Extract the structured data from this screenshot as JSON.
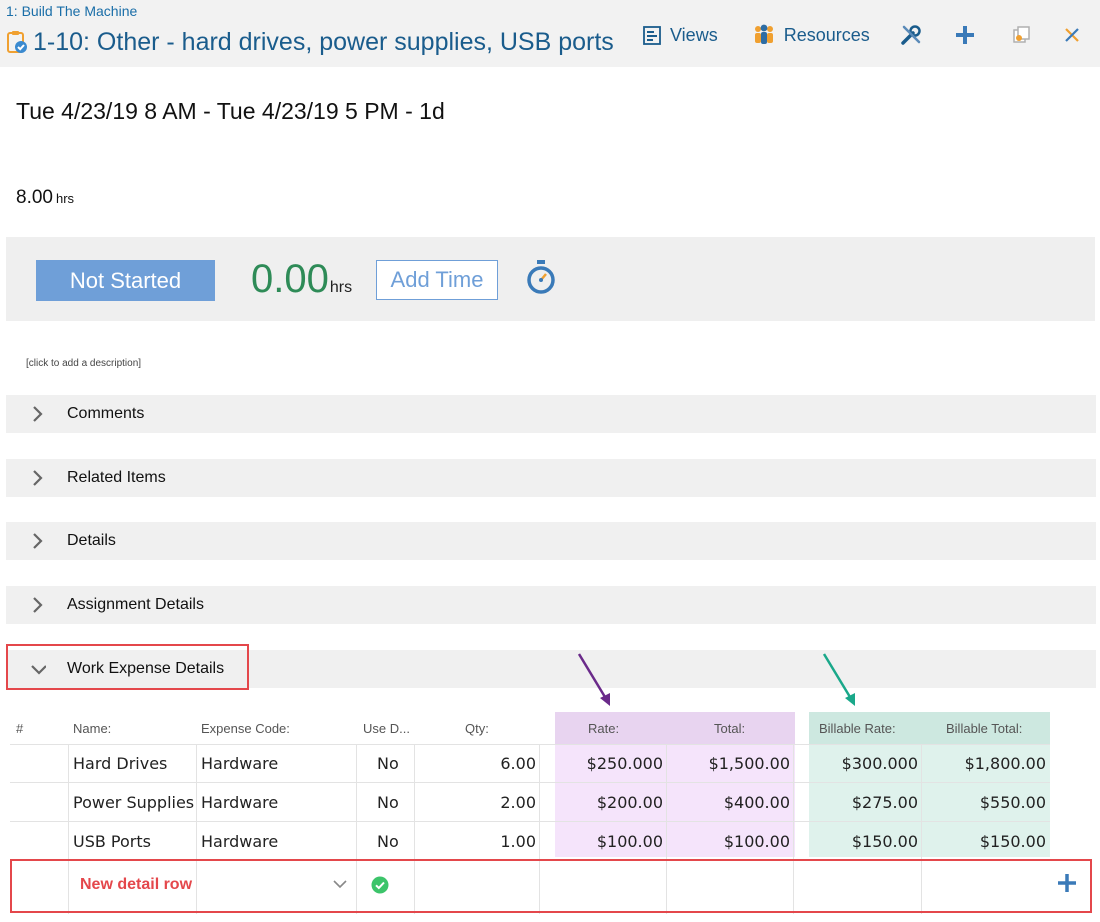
{
  "header": {
    "breadcrumb": "1: Build The Machine",
    "title": "1-10: Other - hard drives, power supplies, USB ports",
    "toolbar": {
      "views_label": "Views",
      "resources_label": "Resources"
    }
  },
  "schedule": {
    "date_range": "Tue 4/23/19 8 AM - Tue 4/23/19 5 PM  - 1d",
    "hours_value": "8.00",
    "hours_unit": "hrs"
  },
  "status": {
    "button_label": "Not Started",
    "time_spent": "0.00",
    "time_unit": "hrs",
    "add_time_label": "Add Time"
  },
  "description_placeholder": "[click to add a description]",
  "sections": [
    {
      "label": "Comments"
    },
    {
      "label": "Related Items"
    },
    {
      "label": "Details"
    },
    {
      "label": "Assignment Details"
    },
    {
      "label": "Work Expense Details"
    }
  ],
  "expense_table": {
    "headers": [
      "#",
      "Name:",
      "Expense Code:",
      "Use D...",
      "Qty:",
      "Rate:",
      "Total:",
      "Billable Rate:",
      "Billable Total:"
    ],
    "rows": [
      {
        "name": "Hard Drives",
        "code": "Hardware",
        "use_default": "No",
        "qty": "6.00",
        "rate": "$250.000",
        "total": "$1,500.00",
        "billable_rate": "$300.000",
        "billable_total": "$1,800.00"
      },
      {
        "name": "Power Supplies",
        "code": "Hardware",
        "use_default": "No",
        "qty": "2.00",
        "rate": "$200.00",
        "total": "$400.00",
        "billable_rate": "$275.00",
        "billable_total": "$550.00"
      },
      {
        "name": "USB Ports",
        "code": "Hardware",
        "use_default": "No",
        "qty": "1.00",
        "rate": "$100.00",
        "total": "$100.00",
        "billable_rate": "$150.00",
        "billable_total": "$150.00"
      }
    ],
    "new_row_label": "New detail row"
  },
  "colors": {
    "accent_blue": "#6f9fd8",
    "title_blue": "#1a5c8c",
    "time_green": "#2e8b57",
    "highlight_red": "#e4474b",
    "rate_purple": "#f5e4fb",
    "billable_teal": "#dff2ec",
    "arrow_purple": "#6a2a8a",
    "arrow_teal": "#1aa88a"
  },
  "icons": {
    "title": "task-clipboard-icon",
    "views": "gantt-views-icon",
    "resources": "people-icon",
    "tools": "wrench-icon",
    "add": "plus-icon",
    "copy": "copy-icon",
    "close": "close-icon",
    "timer": "stopwatch-icon",
    "check": "check-circle-icon"
  }
}
